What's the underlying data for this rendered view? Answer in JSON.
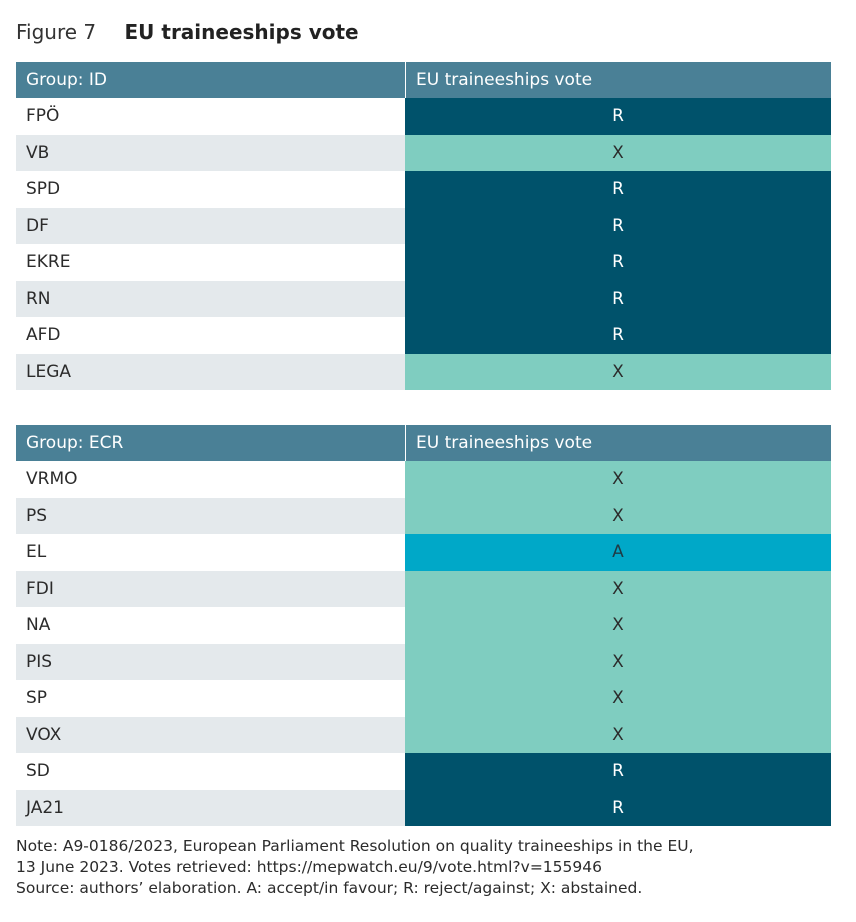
{
  "figure": {
    "label": "Figure 7",
    "title": "EU traineeships vote"
  },
  "tables": [
    {
      "group_header": "Group: ID",
      "vote_header": "EU traineeships vote",
      "rows": [
        {
          "party": "FPÖ",
          "vote": "R"
        },
        {
          "party": "VB",
          "vote": "X"
        },
        {
          "party": "SPD",
          "vote": "R"
        },
        {
          "party": "DF",
          "vote": "R"
        },
        {
          "party": "EKRE",
          "vote": "R"
        },
        {
          "party": "RN",
          "vote": "R"
        },
        {
          "party": "AFD",
          "vote": "R"
        },
        {
          "party": "LEGA",
          "vote": "X"
        }
      ]
    },
    {
      "group_header": "Group: ECR",
      "vote_header": "EU traineeships vote",
      "rows": [
        {
          "party": "VRMO",
          "vote": "X"
        },
        {
          "party": "PS",
          "vote": "X"
        },
        {
          "party": "EL",
          "vote": "A"
        },
        {
          "party": "FDI",
          "vote": "X"
        },
        {
          "party": "NA",
          "vote": "X"
        },
        {
          "party": "PIS",
          "vote": "X"
        },
        {
          "party": "SP",
          "vote": "X"
        },
        {
          "party": "VOX",
          "vote": "X"
        },
        {
          "party": "SD",
          "vote": "R"
        },
        {
          "party": "JA21",
          "vote": "R"
        }
      ]
    }
  ],
  "colors": {
    "header": "#4a8096",
    "R": "#00526b",
    "X": "#7fcdc0",
    "A": "#00a8c8"
  },
  "note": {
    "line1": "Note: A9-0186/2023, European Parliament Resolution on quality traineeships in the EU,",
    "line2": "13 June 2023. Votes retrieved: https://mepwatch.eu/9/vote.html?v=155946",
    "line3": "Source: authors’ elaboration. A: accept/in favour; R: reject/against; X: abstained."
  }
}
